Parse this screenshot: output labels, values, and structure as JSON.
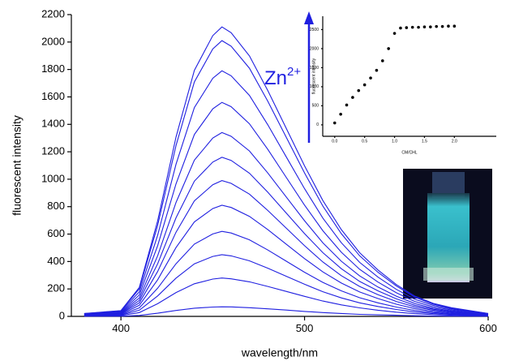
{
  "chart_data": [
    {
      "type": "line",
      "x_label": "wavelength/nm",
      "y_label": "fluorescent intensity",
      "xlim": [
        373,
        600
      ],
      "xticks": [
        400,
        500,
        600
      ],
      "ylim": [
        0,
        2200
      ],
      "yticks": [
        0,
        200,
        400,
        600,
        800,
        1000,
        1200,
        1400,
        1600,
        1800,
        2000,
        2200
      ],
      "color": "#1f1fe0",
      "annotation": {
        "text": "Zn",
        "sup": "2+"
      },
      "x": [
        380,
        400,
        410,
        420,
        430,
        440,
        450,
        455,
        460,
        470,
        480,
        490,
        500,
        510,
        520,
        530,
        540,
        550,
        560,
        570,
        580,
        600
      ],
      "series": [
        {
          "values": [
            1,
            1,
            7,
            23,
            43,
            60,
            68,
            70,
            69,
            63,
            55,
            46,
            36,
            28,
            21,
            15,
            11,
            8,
            5,
            3,
            2,
            1
          ]
        },
        {
          "values": [
            3,
            6,
            28,
            92,
            174,
            238,
            272,
            280,
            274,
            252,
            218,
            182,
            146,
            112,
            84,
            62,
            45,
            31,
            20,
            13,
            8,
            3
          ]
        },
        {
          "values": [
            5,
            9,
            45,
            149,
            279,
            383,
            437,
            450,
            441,
            405,
            351,
            293,
            234,
            180,
            135,
            99,
            72,
            50,
            32,
            20,
            14,
            5
          ]
        },
        {
          "values": [
            6,
            12,
            62,
            205,
            384,
            527,
            601,
            620,
            608,
            558,
            484,
            403,
            322,
            248,
            186,
            136,
            99,
            68,
            43,
            28,
            19,
            6
          ]
        },
        {
          "values": [
            8,
            16,
            81,
            267,
            502,
            689,
            786,
            810,
            794,
            729,
            632,
            527,
            421,
            324,
            243,
            178,
            130,
            89,
            57,
            36,
            24,
            8
          ]
        },
        {
          "values": [
            10,
            20,
            99,
            327,
            614,
            842,
            960,
            990,
            970,
            891,
            772,
            644,
            515,
            396,
            297,
            218,
            158,
            109,
            69,
            45,
            30,
            10
          ]
        },
        {
          "values": [
            12,
            23,
            116,
            383,
            719,
            986,
            1125,
            1160,
            1137,
            1044,
            905,
            754,
            603,
            464,
            348,
            255,
            186,
            128,
            81,
            52,
            35,
            12
          ]
        },
        {
          "values": [
            13,
            27,
            134,
            442,
            831,
            1139,
            1300,
            1340,
            1313,
            1206,
            1045,
            871,
            697,
            536,
            402,
            295,
            214,
            147,
            94,
            60,
            40,
            13
          ]
        },
        {
          "values": [
            16,
            31,
            156,
            515,
            967,
            1326,
            1513,
            1560,
            1529,
            1404,
            1217,
            1014,
            811,
            624,
            468,
            343,
            250,
            172,
            109,
            70,
            47,
            16
          ]
        },
        {
          "values": [
            18,
            36,
            179,
            591,
            1110,
            1522,
            1736,
            1790,
            1754,
            1611,
            1396,
            1164,
            931,
            716,
            537,
            394,
            286,
            197,
            125,
            81,
            54,
            18
          ]
        },
        {
          "values": [
            20,
            40,
            201,
            663,
            1246,
            1709,
            1950,
            2010,
            1970,
            1809,
            1568,
            1307,
            1045,
            804,
            603,
            442,
            322,
            221,
            141,
            90,
            60,
            20
          ]
        },
        {
          "values": [
            21,
            42,
            211,
            696,
            1308,
            1794,
            2047,
            2110,
            2068,
            1899,
            1646,
            1372,
            1097,
            844,
            633,
            464,
            338,
            232,
            148,
            95,
            63,
            21
          ]
        }
      ]
    },
    {
      "type": "scatter",
      "x_label": "CM/CHL",
      "y_label": "fluorescent intensity",
      "xlim": [
        -0.2,
        2.7
      ],
      "xticks": [
        {
          "value": 0,
          "label": "0.0"
        },
        {
          "value": 0.5,
          "label": "0.5"
        },
        {
          "value": 1,
          "label": "1.0"
        },
        {
          "value": 1.5,
          "label": "1.5"
        },
        {
          "value": 2,
          "label": "2.0"
        }
      ],
      "ylim": [
        -300,
        2850
      ],
      "yticks": [
        0,
        500,
        1000,
        1500,
        2000,
        2500
      ],
      "color": "#000000",
      "x": [
        0,
        0.1,
        0.2,
        0.3,
        0.4,
        0.5,
        0.6,
        0.7,
        0.8,
        0.9,
        1.0,
        1.1,
        1.2,
        1.3,
        1.4,
        1.5,
        1.6,
        1.7,
        1.8,
        1.9,
        2.0
      ],
      "values": [
        50,
        280,
        520,
        720,
        900,
        1050,
        1230,
        1430,
        1680,
        2000,
        2400,
        2540,
        2550,
        2560,
        2560,
        2570,
        2570,
        2580,
        2580,
        2590,
        2590
      ]
    }
  ]
}
